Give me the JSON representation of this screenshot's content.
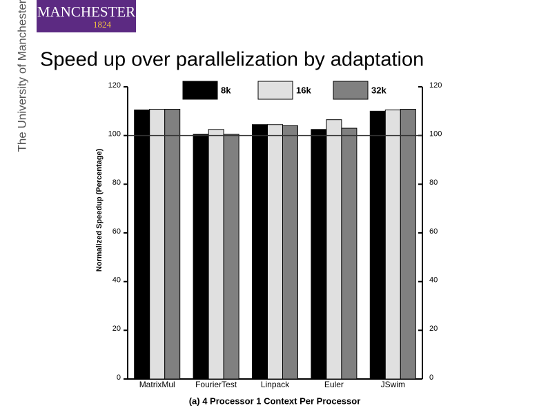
{
  "header": {
    "logo": "MANCHESTER",
    "logo_year": "1824",
    "university": "The University of Manchester",
    "title": "Speed up over parallelization by adaptation"
  },
  "chart_data": {
    "type": "bar",
    "x_label": "(a) 4 Processor 1 Context Per Processor",
    "y_label": "Normalized Speedup (Percentage)",
    "categories": [
      "MatrixMul",
      "FourierTest",
      "Linpack",
      "Euler",
      "JSwim"
    ],
    "series": [
      {
        "name": "8k",
        "color": "#000000",
        "values": [
          110.5,
          100.5,
          104.5,
          102.5,
          110
        ]
      },
      {
        "name": "16k",
        "color": "#e0e0e0",
        "values": [
          110.8,
          102.5,
          104.5,
          106.5,
          110.5
        ]
      },
      {
        "name": "32k",
        "color": "#808080",
        "values": [
          110.8,
          100.5,
          104,
          103,
          110.8
        ]
      }
    ],
    "reference_line": 100,
    "ylim": [
      0,
      120
    ],
    "yticks": [
      0,
      20,
      40,
      60,
      80,
      100,
      120
    ],
    "y2lim": [
      0,
      120
    ],
    "y2ticks": [
      0,
      20,
      40,
      60,
      80,
      100,
      120
    ],
    "legend": "top"
  }
}
